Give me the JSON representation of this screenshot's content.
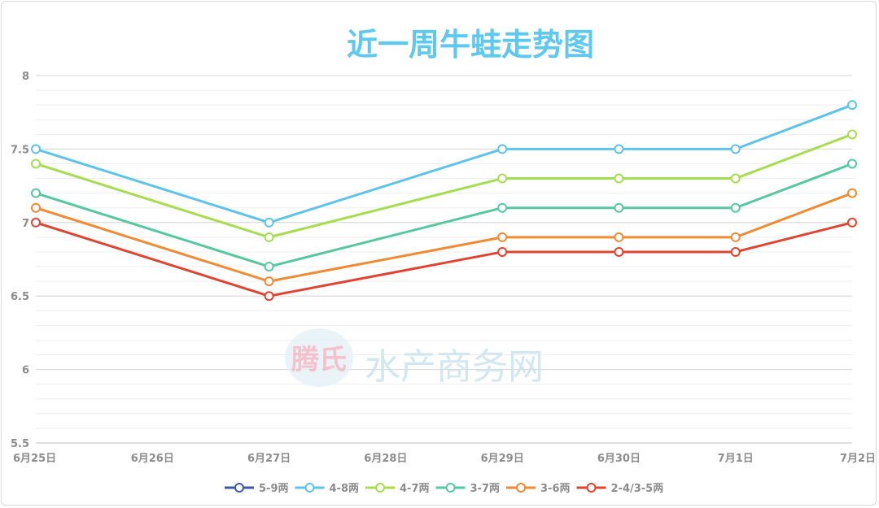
{
  "chart_data": {
    "type": "line",
    "title": "近一周牛蛙走势图",
    "categories": [
      "6月25日",
      "6月26日",
      "6月27日",
      "6月28日",
      "6月29日",
      "6月30日",
      "7月1日",
      "7月2日"
    ],
    "ylim": [
      5.5,
      8
    ],
    "yticks": [
      "5.5",
      "6",
      "6.5",
      "7",
      "7.5",
      "8"
    ],
    "grid": true,
    "legend": "bottom",
    "series": [
      {
        "name": "5-9两",
        "color": "#3e57a8",
        "points": []
      },
      {
        "name": "4-8两",
        "color": "#5ec3ea",
        "points": [
          [
            0,
            7.5
          ],
          [
            2,
            7.0
          ],
          [
            4,
            7.5
          ],
          [
            5,
            7.5
          ],
          [
            6,
            7.5
          ],
          [
            7,
            7.8
          ]
        ]
      },
      {
        "name": "4-7两",
        "color": "#a6dd4e",
        "points": [
          [
            0,
            7.4
          ],
          [
            2,
            6.9
          ],
          [
            4,
            7.3
          ],
          [
            5,
            7.3
          ],
          [
            6,
            7.3
          ],
          [
            7,
            7.6
          ]
        ]
      },
      {
        "name": "3-7两",
        "color": "#56c8a0",
        "points": [
          [
            0,
            7.2
          ],
          [
            2,
            6.7
          ],
          [
            4,
            7.1
          ],
          [
            5,
            7.1
          ],
          [
            6,
            7.1
          ],
          [
            7,
            7.4
          ]
        ]
      },
      {
        "name": "3-6两",
        "color": "#f08a33",
        "points": [
          [
            0,
            7.1
          ],
          [
            2,
            6.6
          ],
          [
            4,
            6.9
          ],
          [
            5,
            6.9
          ],
          [
            6,
            6.9
          ],
          [
            7,
            7.2
          ]
        ]
      },
      {
        "name": "2-4/3-5两",
        "color": "#df4430",
        "points": [
          [
            0,
            7.0
          ],
          [
            2,
            6.5
          ],
          [
            4,
            6.8
          ],
          [
            5,
            6.8
          ],
          [
            6,
            6.8
          ],
          [
            7,
            7.0
          ]
        ]
      }
    ]
  },
  "watermark": {
    "logo_text": "腾氏",
    "site_text": "水产商务网"
  }
}
